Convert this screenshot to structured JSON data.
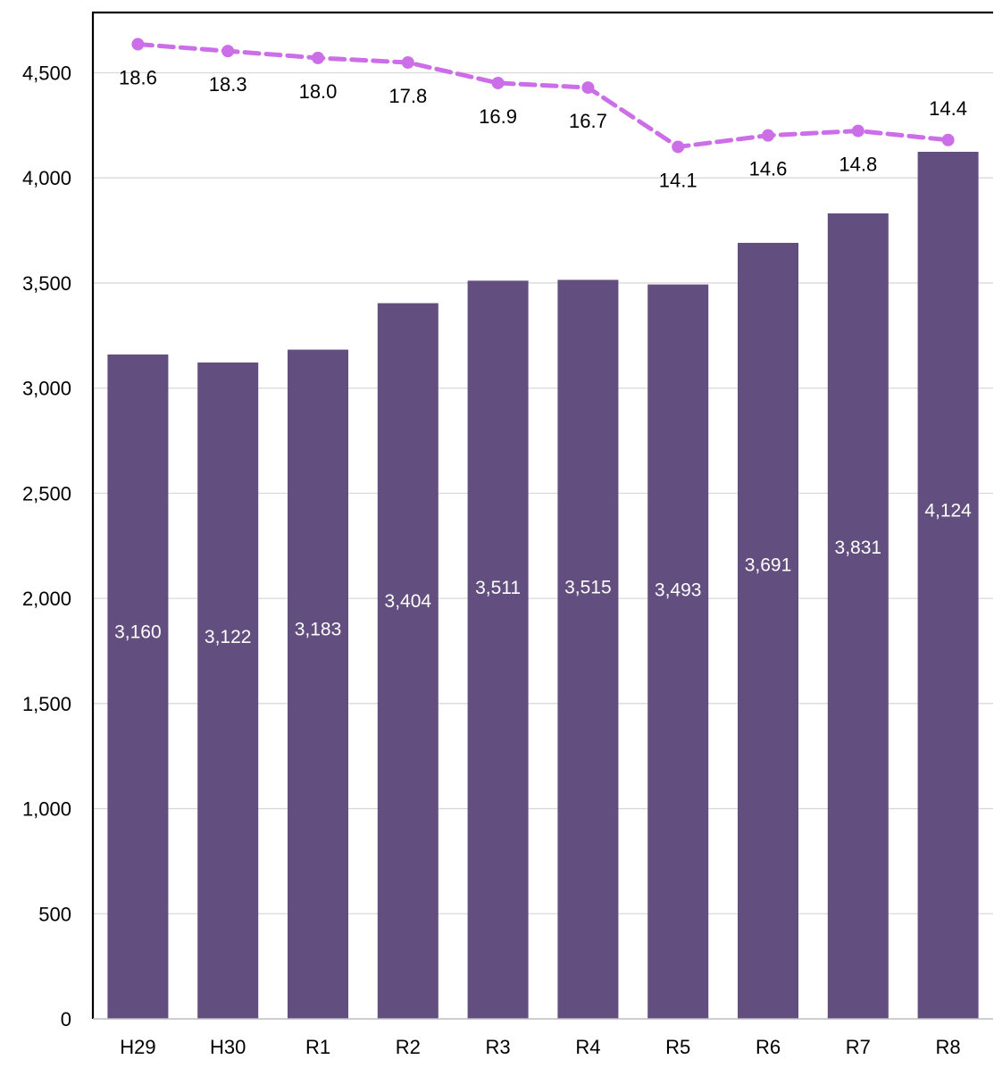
{
  "chart_data": {
    "type": "bar",
    "title": "",
    "xlabel": "",
    "ylabel": "",
    "categories": [
      "H29",
      "H30",
      "R1",
      "R2",
      "R3",
      "R4",
      "R5",
      "R6",
      "R7",
      "R8"
    ],
    "ylim": [
      0,
      4750
    ],
    "yticks": [
      0,
      500,
      1000,
      1500,
      2000,
      2500,
      3000,
      3500,
      4000,
      4500
    ],
    "ytick_labels": [
      "0",
      "500",
      "1,000",
      "1,500",
      "2,000",
      "2,500",
      "3,000",
      "3,500",
      "4,000",
      "4,500"
    ],
    "grid": true,
    "legend": "none",
    "series": [
      {
        "type": "bar",
        "values": [
          3160,
          3122,
          3183,
          3404,
          3511,
          3515,
          3493,
          3691,
          3831,
          4124
        ],
        "labels": [
          "3,160",
          "3,122",
          "3,183",
          "3,404",
          "3,511",
          "3,515",
          "3,493",
          "3,691",
          "3,831",
          "4,124"
        ],
        "color": "#634f7f",
        "label_color": "#ffffff"
      },
      {
        "type": "line",
        "values": [
          18.6,
          18.3,
          18.0,
          17.8,
          16.9,
          16.7,
          14.1,
          14.6,
          14.8,
          14.4
        ],
        "labels": [
          "18.6",
          "18.3",
          "18.0",
          "17.8",
          "16.9",
          "16.7",
          "14.1",
          "14.6",
          "14.8",
          "14.4"
        ],
        "secondary_axis": true,
        "axis_labels_shown": false,
        "style": "dashed",
        "marker": "circle",
        "color": "#cc6ee8"
      }
    ],
    "colors": {
      "axis": "#000000",
      "gridline": "#d9d9d9"
    }
  }
}
